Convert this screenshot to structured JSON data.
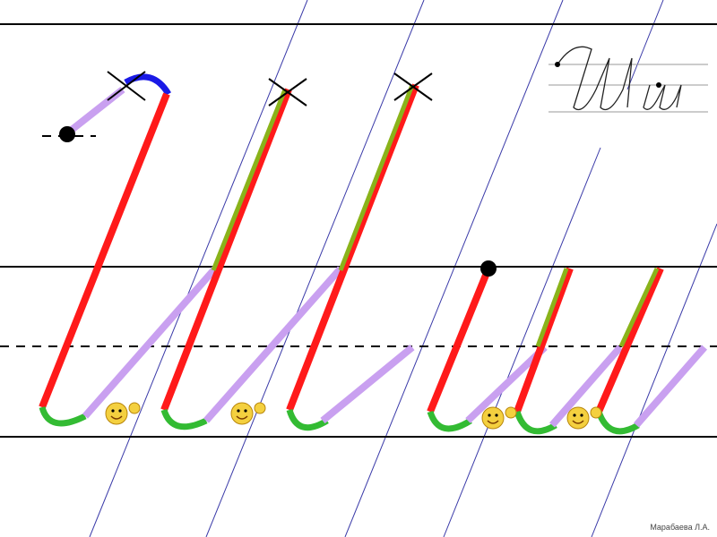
{
  "author": "Марабаева Л.А."
}
